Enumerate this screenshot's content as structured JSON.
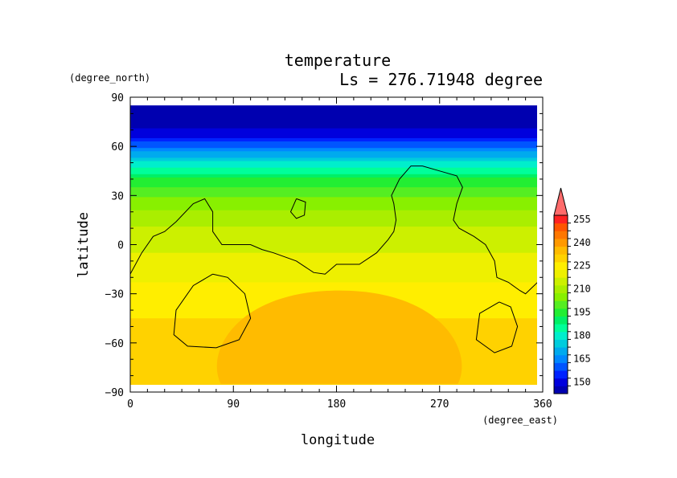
{
  "chart_data": {
    "type": "heatmap",
    "title": "temperature",
    "subtitle": "Ls = 276.71948 degree",
    "xlabel": "longitude",
    "ylabel": "latitude",
    "x_unit": "(degree_east)",
    "y_unit": "(degree_north)",
    "xlim": [
      0,
      360
    ],
    "ylim": [
      -90,
      90
    ],
    "x_ticks": [
      "0",
      "90",
      "180",
      "270",
      "360"
    ],
    "y_ticks": [
      "90",
      "60",
      "30",
      "0",
      "−30",
      "−60",
      "−90"
    ],
    "data_lat_range": [
      -87,
      85
    ],
    "colorbar": {
      "labels": [
        "255",
        "240",
        "225",
        "210",
        "195",
        "180",
        "165",
        "150"
      ],
      "levels": [
        145,
        150,
        155,
        160,
        165,
        170,
        175,
        180,
        185,
        190,
        195,
        200,
        205,
        210,
        215,
        220,
        225,
        230,
        235,
        240,
        245,
        250,
        255,
        260
      ],
      "colors": [
        "#0000b0",
        "#0000dd",
        "#0022ff",
        "#0055ff",
        "#0088ff",
        "#00aaee",
        "#00ccdd",
        "#00eecc",
        "#00ff99",
        "#00f066",
        "#22ee33",
        "#55ee22",
        "#88f000",
        "#aaee00",
        "#ccf000",
        "#eef000",
        "#ffee00",
        "#ffd200",
        "#ffbb00",
        "#ff9900",
        "#ff7700",
        "#ff5500",
        "#ff2222",
        "#ff6b6b"
      ],
      "extend": "max"
    },
    "zonal_profile": [
      {
        "lat": 85,
        "value": 146
      },
      {
        "lat": 75,
        "value": 148
      },
      {
        "lat": 68,
        "value": 152
      },
      {
        "lat": 62,
        "value": 160
      },
      {
        "lat": 56,
        "value": 170
      },
      {
        "lat": 50,
        "value": 180
      },
      {
        "lat": 45,
        "value": 188
      },
      {
        "lat": 40,
        "value": 195
      },
      {
        "lat": 35,
        "value": 200
      },
      {
        "lat": 28,
        "value": 205
      },
      {
        "lat": 20,
        "value": 210
      },
      {
        "lat": 10,
        "value": 215
      },
      {
        "lat": 0,
        "value": 217
      },
      {
        "lat": -10,
        "value": 222
      },
      {
        "lat": -20,
        "value": 224
      },
      {
        "lat": -30,
        "value": 227
      },
      {
        "lat": -45,
        "value": 230
      },
      {
        "lat": -60,
        "value": 232
      },
      {
        "lat": -70,
        "value": 234
      },
      {
        "lat": -80,
        "value": 233
      },
      {
        "lat": -87,
        "value": 232
      }
    ],
    "warm_patch": {
      "lon_range": [
        65,
        300
      ],
      "lat_range": [
        -85,
        -28
      ],
      "value": 236
    },
    "contour_lines": [
      {
        "name": "coastline",
        "points": [
          [
            0,
            -18
          ],
          [
            10,
            -5
          ],
          [
            20,
            5
          ],
          [
            30,
            8
          ],
          [
            40,
            14
          ],
          [
            55,
            25
          ],
          [
            65,
            28
          ],
          [
            72,
            20
          ],
          [
            72,
            8
          ],
          [
            80,
            0
          ],
          [
            95,
            0
          ],
          [
            105,
            0
          ],
          [
            115,
            -3
          ],
          [
            125,
            -5
          ],
          [
            145,
            -10
          ],
          [
            160,
            -17
          ],
          [
            170,
            -18
          ],
          [
            180,
            -12
          ],
          [
            200,
            -12
          ],
          [
            215,
            -5
          ],
          [
            225,
            3
          ],
          [
            230,
            8
          ],
          [
            232,
            15
          ],
          [
            230,
            25
          ],
          [
            228,
            30
          ],
          [
            235,
            40
          ],
          [
            245,
            48
          ],
          [
            255,
            48
          ],
          [
            270,
            45
          ],
          [
            285,
            42
          ],
          [
            290,
            35
          ],
          [
            285,
            25
          ],
          [
            282,
            15
          ],
          [
            287,
            10
          ],
          [
            300,
            5
          ],
          [
            310,
            0
          ],
          [
            318,
            -10
          ],
          [
            320,
            -20
          ],
          [
            330,
            -23
          ],
          [
            340,
            -28
          ],
          [
            345,
            -30
          ],
          [
            360,
            -20
          ]
        ]
      },
      {
        "name": "island",
        "points": [
          [
            145,
            28
          ],
          [
            140,
            20
          ],
          [
            145,
            16
          ],
          [
            152,
            18
          ],
          [
            153,
            26
          ],
          [
            145,
            28
          ]
        ]
      },
      {
        "name": "southwest-basin",
        "points": [
          [
            72,
            -18
          ],
          [
            55,
            -25
          ],
          [
            40,
            -40
          ],
          [
            38,
            -55
          ],
          [
            50,
            -62
          ],
          [
            75,
            -63
          ],
          [
            95,
            -58
          ],
          [
            105,
            -45
          ],
          [
            100,
            -30
          ],
          [
            85,
            -20
          ],
          [
            72,
            -18
          ]
        ]
      },
      {
        "name": "southeast-basin",
        "points": [
          [
            322,
            -35
          ],
          [
            305,
            -42
          ],
          [
            302,
            -58
          ],
          [
            318,
            -66
          ],
          [
            333,
            -62
          ],
          [
            338,
            -50
          ],
          [
            332,
            -38
          ],
          [
            322,
            -35
          ]
        ]
      }
    ]
  }
}
